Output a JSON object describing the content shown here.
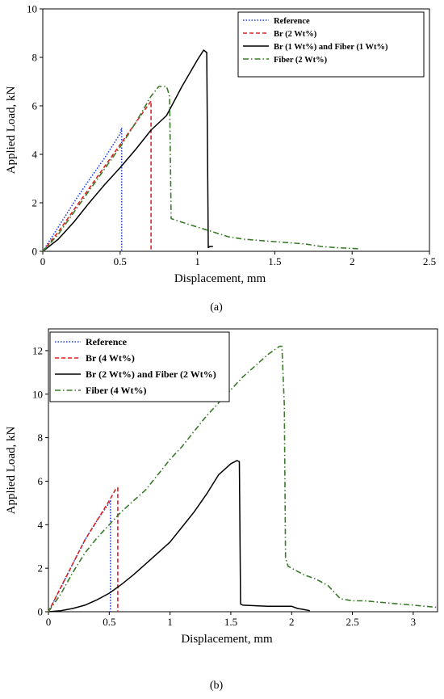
{
  "chart_data": [
    {
      "type": "line",
      "panel_label": "(a)",
      "xlabel": "Displacement, mm",
      "ylabel": "Applied Load, kN",
      "xlim": [
        0,
        2.5
      ],
      "ylim": [
        0,
        10
      ],
      "xticks": [
        "0",
        "0.5",
        "1",
        "1.5",
        "2",
        "2.5"
      ],
      "yticks": [
        "0",
        "2",
        "4",
        "6",
        "8",
        "10"
      ],
      "legend_position": "top-right",
      "grid": false,
      "series": [
        {
          "name": "Reference",
          "color": "#1f3fd6",
          "dash": "dotted",
          "x": [
            0,
            0.1,
            0.2,
            0.3,
            0.4,
            0.5,
            0.51,
            0.51
          ],
          "y": [
            0,
            1.0,
            2.0,
            2.95,
            3.85,
            4.85,
            5.1,
            0
          ]
        },
        {
          "name": "Br (2 Wt%)",
          "color": "#e02020",
          "dash": "dashed",
          "x": [
            0,
            0.1,
            0.2,
            0.3,
            0.4,
            0.5,
            0.6,
            0.7,
            0.7
          ],
          "y": [
            0,
            0.8,
            1.7,
            2.6,
            3.5,
            4.4,
            5.3,
            6.2,
            0
          ]
        },
        {
          "name": "Br (1 Wt%) and Fiber (1 Wt%)",
          "color": "#000000",
          "dash": "solid",
          "x": [
            0,
            0.1,
            0.2,
            0.3,
            0.4,
            0.5,
            0.6,
            0.7,
            0.8,
            0.9,
            1.0,
            1.04,
            1.06,
            1.07,
            1.08,
            1.1
          ],
          "y": [
            0,
            0.5,
            1.2,
            2.0,
            2.75,
            3.45,
            4.2,
            5.0,
            5.6,
            6.8,
            7.9,
            8.3,
            8.2,
            0.15,
            0.2,
            0.2
          ]
        },
        {
          "name": "Fiber (2 Wt%)",
          "color": "#3a7a2a",
          "dash": "dashdot",
          "x": [
            0,
            0.1,
            0.2,
            0.3,
            0.4,
            0.5,
            0.6,
            0.7,
            0.75,
            0.8,
            0.82,
            0.83,
            0.9,
            1.0,
            1.1,
            1.2,
            1.3,
            1.4,
            1.5,
            1.6,
            1.7,
            1.75,
            1.8,
            1.9,
            2.0,
            2.05
          ],
          "y": [
            0,
            0.7,
            1.6,
            2.5,
            3.4,
            4.3,
            5.3,
            6.4,
            6.8,
            6.8,
            6.4,
            1.35,
            1.2,
            1.0,
            0.8,
            0.6,
            0.5,
            0.45,
            0.4,
            0.35,
            0.3,
            0.25,
            0.2,
            0.15,
            0.12,
            0.1
          ]
        }
      ]
    },
    {
      "type": "line",
      "panel_label": "(b)",
      "xlabel": "Displacement, mm",
      "ylabel": "Applied Load, kN",
      "xlim": [
        0,
        3.2
      ],
      "ylim": [
        0,
        13
      ],
      "xticks": [
        "0",
        "0.5",
        "1",
        "1.5",
        "2",
        "2.5",
        "3"
      ],
      "yticks": [
        "0",
        "2",
        "4",
        "6",
        "8",
        "10",
        "12"
      ],
      "legend_position": "top-left",
      "grid": false,
      "series": [
        {
          "name": "Reference",
          "color": "#1f3fd6",
          "dash": "dotted",
          "x": [
            0,
            0.1,
            0.2,
            0.3,
            0.4,
            0.5,
            0.51,
            0.51
          ],
          "y": [
            0,
            1.1,
            2.2,
            3.3,
            4.2,
            5.0,
            5.1,
            0
          ]
        },
        {
          "name": "Br (4 Wt%)",
          "color": "#e02020",
          "dash": "dashed",
          "x": [
            0,
            0.1,
            0.2,
            0.3,
            0.4,
            0.5,
            0.55,
            0.57,
            0.57
          ],
          "y": [
            0,
            1.1,
            2.2,
            3.3,
            4.2,
            5.1,
            5.6,
            5.7,
            0
          ]
        },
        {
          "name": "Br (2 Wt%) and Fiber (2 Wt%)",
          "color": "#000000",
          "dash": "solid",
          "x": [
            0,
            0.1,
            0.2,
            0.3,
            0.4,
            0.5,
            0.6,
            0.7,
            0.8,
            0.9,
            1.0,
            1.1,
            1.2,
            1.3,
            1.4,
            1.5,
            1.55,
            1.57,
            1.58,
            1.6,
            1.8,
            2.0,
            2.05,
            2.1,
            2.15
          ],
          "y": [
            0,
            0.05,
            0.15,
            0.3,
            0.55,
            0.85,
            1.25,
            1.7,
            2.2,
            2.7,
            3.2,
            3.9,
            4.6,
            5.4,
            6.3,
            6.8,
            6.95,
            6.9,
            0.35,
            0.3,
            0.25,
            0.25,
            0.15,
            0.1,
            0.05
          ]
        },
        {
          "name": "Fiber (4 Wt%)",
          "color": "#3a7a2a",
          "dash": "dashdot",
          "x": [
            0,
            0.1,
            0.2,
            0.3,
            0.4,
            0.5,
            0.6,
            0.7,
            0.8,
            0.9,
            1.0,
            1.1,
            1.2,
            1.3,
            1.4,
            1.5,
            1.6,
            1.7,
            1.8,
            1.9,
            1.92,
            1.94,
            1.95,
            1.97,
            2.0,
            2.1,
            2.2,
            2.3,
            2.4,
            2.5,
            2.6,
            2.7,
            2.8,
            2.9,
            3.0,
            3.1,
            3.2
          ],
          "y": [
            0,
            0.8,
            1.8,
            2.7,
            3.4,
            4.0,
            4.6,
            5.1,
            5.6,
            6.3,
            7.0,
            7.6,
            8.3,
            9.0,
            9.6,
            10.2,
            10.8,
            11.3,
            11.8,
            12.2,
            12.2,
            9.5,
            2.5,
            2.1,
            2.0,
            1.7,
            1.5,
            1.2,
            0.6,
            0.5,
            0.5,
            0.45,
            0.4,
            0.35,
            0.3,
            0.25,
            0.2
          ]
        }
      ]
    }
  ]
}
